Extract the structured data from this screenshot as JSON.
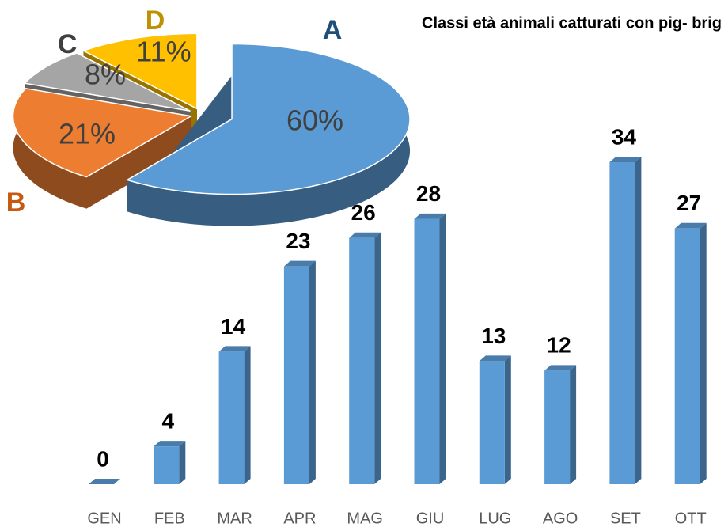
{
  "chart_data": [
    {
      "type": "bar",
      "title": "Classi età animali catturati con pig- brig",
      "categories": [
        "GEN",
        "FEB",
        "MAR",
        "APR",
        "MAG",
        "GIU",
        "LUG",
        "AGO",
        "SET",
        "OTT"
      ],
      "values": [
        0,
        4,
        14,
        23,
        26,
        28,
        13,
        12,
        34,
        27
      ],
      "color": "#5b9bd5"
    },
    {
      "type": "pie",
      "categories": [
        "A",
        "B",
        "C",
        "D"
      ],
      "values": [
        60,
        21,
        8,
        11
      ],
      "value_labels": [
        "60%",
        "21%",
        "8%",
        "11%"
      ],
      "colors": [
        "#5b9bd5",
        "#ed7d31",
        "#a5a5a5",
        "#ffc000"
      ]
    }
  ]
}
